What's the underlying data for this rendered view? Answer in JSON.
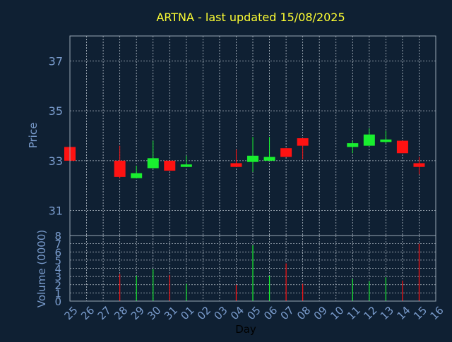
{
  "title": "ARTNA - last updated 15/08/2025",
  "colors": {
    "background": "#0f2033",
    "title": "#ffff33",
    "axis_text": "#7a9ccd",
    "axis_line": "#9aa8b6",
    "grid": "#b9c2cc",
    "up": "#19ef2f",
    "down": "#ff1212"
  },
  "chart_data": [
    {
      "type": "candlestick",
      "ylabel": "Price",
      "ylim": [
        30.0,
        38.0
      ],
      "yticks": [
        31,
        33,
        35,
        37
      ],
      "x_categories": [
        "25",
        "26",
        "27",
        "28",
        "29",
        "30",
        "31",
        "01",
        "02",
        "03",
        "04",
        "05",
        "06",
        "07",
        "08",
        "09",
        "10",
        "11",
        "12",
        "13",
        "14",
        "15",
        "16"
      ],
      "grid": true,
      "candles": [
        {
          "x": "25",
          "open": 33.55,
          "high": 33.55,
          "low": 33.0,
          "close": 33.0
        },
        {
          "x": "28",
          "open": 33.0,
          "high": 33.6,
          "low": 32.3,
          "close": 32.35
        },
        {
          "x": "29",
          "open": 32.3,
          "high": 32.8,
          "low": 32.3,
          "close": 32.5
        },
        {
          "x": "30",
          "open": 32.7,
          "high": 33.8,
          "low": 32.7,
          "close": 33.1
        },
        {
          "x": "31",
          "open": 33.0,
          "high": 33.0,
          "low": 32.6,
          "close": 32.6
        },
        {
          "x": "01",
          "open": 32.75,
          "high": 33.2,
          "low": 32.75,
          "close": 32.85
        },
        {
          "x": "04",
          "open": 32.9,
          "high": 33.45,
          "low": 32.75,
          "close": 32.75
        },
        {
          "x": "05",
          "open": 32.95,
          "high": 33.95,
          "low": 32.55,
          "close": 33.2
        },
        {
          "x": "06",
          "open": 33.0,
          "high": 33.95,
          "low": 33.0,
          "close": 33.15
        },
        {
          "x": "07",
          "open": 33.5,
          "high": 33.5,
          "low": 33.15,
          "close": 33.15
        },
        {
          "x": "08",
          "open": 33.9,
          "high": 33.9,
          "low": 33.05,
          "close": 33.6
        },
        {
          "x": "11",
          "open": 33.55,
          "high": 33.8,
          "low": 33.3,
          "close": 33.7
        },
        {
          "x": "12",
          "open": 33.6,
          "high": 34.3,
          "low": 33.6,
          "close": 34.05
        },
        {
          "x": "13",
          "open": 33.75,
          "high": 34.2,
          "low": 33.7,
          "close": 33.85
        },
        {
          "x": "14",
          "open": 33.8,
          "high": 33.8,
          "low": 33.3,
          "close": 33.3
        },
        {
          "x": "15",
          "open": 32.9,
          "high": 33.15,
          "low": 32.45,
          "close": 32.75
        }
      ]
    },
    {
      "type": "bar",
      "ylabel": "Volume (0000)",
      "xlabel": "Day",
      "ylim": [
        0,
        8
      ],
      "yticks": [
        0,
        1,
        2,
        3,
        4,
        5,
        6,
        7,
        8
      ],
      "categories": [
        "25",
        "26",
        "27",
        "28",
        "29",
        "30",
        "31",
        "01",
        "02",
        "03",
        "04",
        "05",
        "06",
        "07",
        "08",
        "09",
        "10",
        "11",
        "12",
        "13",
        "14",
        "15",
        "16"
      ],
      "grid": true,
      "bars": [
        {
          "x": "28",
          "value": 3.3,
          "direction": "down"
        },
        {
          "x": "29",
          "value": 3.1,
          "direction": "up"
        },
        {
          "x": "30",
          "value": 3.9,
          "direction": "up"
        },
        {
          "x": "31",
          "value": 3.2,
          "direction": "down"
        },
        {
          "x": "01",
          "value": 2.1,
          "direction": "up"
        },
        {
          "x": "04",
          "value": 2.0,
          "direction": "down"
        },
        {
          "x": "05",
          "value": 6.8,
          "direction": "up"
        },
        {
          "x": "06",
          "value": 3.1,
          "direction": "up"
        },
        {
          "x": "07",
          "value": 4.6,
          "direction": "down"
        },
        {
          "x": "08",
          "value": 2.1,
          "direction": "down"
        },
        {
          "x": "11",
          "value": 2.7,
          "direction": "up"
        },
        {
          "x": "12",
          "value": 2.4,
          "direction": "up"
        },
        {
          "x": "13",
          "value": 2.9,
          "direction": "up"
        },
        {
          "x": "14",
          "value": 2.5,
          "direction": "down"
        },
        {
          "x": "15",
          "value": 7.0,
          "direction": "down"
        }
      ]
    }
  ]
}
